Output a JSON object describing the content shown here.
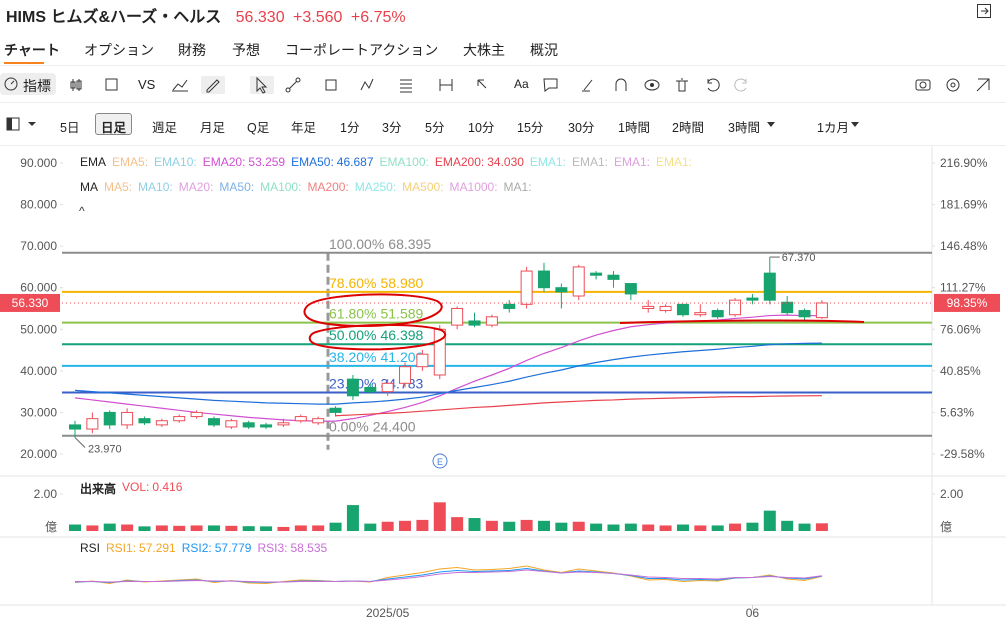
{
  "header": {
    "symbol": "HIMS ヒムズ&ハーズ・ヘルス",
    "price": "56.330",
    "change": "+3.560",
    "change_pct": "+6.75%"
  },
  "tabs": [
    "チャート",
    "オプション",
    "財務",
    "予想",
    "コーポレートアクション",
    "大株主",
    "概況"
  ],
  "toolbar": {
    "indicators": "指標",
    "vs": "VS",
    "text": "Aa"
  },
  "periods": [
    "5日",
    "日足",
    "週足",
    "月足",
    "Q足",
    "年足",
    "1分",
    "3分",
    "5分",
    "10分",
    "15分",
    "30分",
    "1時間",
    "2時間",
    "3時間",
    "1カ月"
  ],
  "earnings_marker": "E",
  "chart_data": {
    "type": "candlestick",
    "categories": [
      null,
      null,
      null,
      null,
      null,
      null,
      null,
      null,
      null,
      null,
      null,
      null,
      null,
      null,
      null,
      null,
      null,
      null,
      "2025/05",
      null,
      null,
      null,
      null,
      null,
      null,
      null,
      null,
      null,
      null,
      null,
      null,
      null,
      null,
      null,
      null,
      null,
      null,
      null,
      null,
      "06",
      null,
      null,
      null,
      null
    ],
    "open": [
      27,
      26,
      30,
      27,
      28.5,
      27,
      28,
      29,
      28.5,
      26.5,
      27.5,
      27,
      27,
      28,
      27.5,
      31,
      38,
      36,
      35,
      37,
      41,
      39,
      51,
      52,
      51,
      56,
      56,
      64,
      60,
      58,
      63.5,
      63,
      61,
      55,
      54.5,
      56,
      53.5,
      54.5,
      53.5,
      57.5,
      63.5,
      56.5,
      54.5,
      52.8
    ],
    "high": [
      28,
      30,
      30.5,
      31,
      29,
      28.5,
      29.5,
      30.5,
      29,
      28.5,
      28,
      27.5,
      28.5,
      29.5,
      29,
      31.5,
      39,
      37,
      38,
      42,
      45,
      51,
      55.5,
      54,
      53.5,
      57,
      65,
      66,
      61,
      65.5,
      64,
      64,
      61,
      57,
      56,
      56,
      56,
      55,
      57.5,
      58.5,
      67.37,
      58,
      55,
      57
    ],
    "low": [
      23.97,
      25,
      26,
      26,
      27,
      26.5,
      27.5,
      28.5,
      26.5,
      26,
      26,
      26,
      26.5,
      27.5,
      27,
      29,
      33,
      34.5,
      34,
      36,
      40,
      38,
      50,
      50.5,
      50.5,
      54,
      55,
      59,
      55,
      57,
      62,
      60,
      57,
      54,
      54,
      53,
      53,
      52.5,
      53,
      56,
      56,
      53.5,
      52,
      52.5
    ],
    "close": [
      26,
      28.5,
      27,
      30,
      27.5,
      28,
      29,
      30,
      27,
      28,
      26.5,
      26.5,
      27.5,
      29,
      28.5,
      30,
      34,
      35,
      37,
      41,
      44,
      50,
      55,
      51,
      53,
      55,
      64,
      60,
      59,
      65,
      63,
      62,
      58.5,
      55.5,
      55.5,
      53.5,
      54,
      53,
      57,
      57,
      57,
      54,
      53,
      56.33
    ],
    "up_color": "#ee4d57",
    "down_color": "#17a46e",
    "ylim": [
      16.15,
      93.6
    ],
    "yticks": [
      {
        "value": 20,
        "label": "20.000"
      },
      {
        "value": 30,
        "label": "30.000"
      },
      {
        "value": 40,
        "label": "40.000"
      },
      {
        "value": 50,
        "label": "50.000"
      },
      {
        "value": 60,
        "label": "60.000"
      },
      {
        "value": 70,
        "label": "70.000"
      },
      {
        "value": 80,
        "label": "80.000"
      },
      {
        "value": 90,
        "label": "90.000"
      }
    ],
    "y2lim": [
      -43.14,
      229.56
    ],
    "y2ticks": [
      {
        "value": -29.58,
        "label": "-29.58%"
      },
      {
        "value": 5.63,
        "label": "5.63%"
      },
      {
        "value": 40.85,
        "label": "40.85%"
      },
      {
        "value": 76.06,
        "label": "76.06%"
      },
      {
        "value": 111.27,
        "label": "111.27%"
      },
      {
        "value": 146.48,
        "label": "146.48%"
      },
      {
        "value": 181.69,
        "label": "181.69%"
      },
      {
        "value": 216.9,
        "label": "216.90%"
      }
    ],
    "ema_legend": {
      "title": "EMA",
      "items": [
        {
          "name": "EMA5:",
          "color": "#f5c08a"
        },
        {
          "name": "EMA10:",
          "color": "#8fd0e6"
        },
        {
          "name": "EMA20:",
          "color": "#d14fd1",
          "value": 53.259
        },
        {
          "name": "EMA50:",
          "color": "#1e6fd9",
          "value": 46.687
        },
        {
          "name": "EMA100:",
          "color": "#8fdfc6"
        },
        {
          "name": "EMA200:",
          "color": "#e8414b",
          "value": 34.03,
          "value_label": "34.030"
        },
        {
          "name": "EMA1:",
          "color": "#8fe6e6"
        },
        {
          "name": "EMA1:",
          "color": "#b9b9b9"
        },
        {
          "name": "EMA1:",
          "color": "#dfa0df"
        },
        {
          "name": "EMA1:",
          "color": "#f3df8a"
        }
      ]
    },
    "ma_legend": {
      "title": "MA",
      "items": [
        {
          "name": "MA5:",
          "color": "#f5c08a"
        },
        {
          "name": "MA10:",
          "color": "#8fd0e6"
        },
        {
          "name": "MA20:",
          "color": "#dfa0df"
        },
        {
          "name": "MA50:",
          "color": "#7fb2e6"
        },
        {
          "name": "MA100:",
          "color": "#8fdfc6"
        },
        {
          "name": "MA200:",
          "color": "#f08080"
        },
        {
          "name": "MA250:",
          "color": "#8fe6e6"
        },
        {
          "name": "MA500:",
          "color": "#f3cf7a"
        },
        {
          "name": "MA1000:",
          "color": "#dfa0df"
        },
        {
          "name": "MA1:",
          "color": "#aaaaaa"
        }
      ]
    },
    "ema_lines": [
      {
        "color": "#d14fd1",
        "values": [
          33.5,
          33.0,
          32.5,
          32.0,
          31.5,
          31.0,
          30.5,
          30.0,
          29.6,
          29.2,
          28.8,
          28.5,
          28.2,
          28.0,
          27.9,
          27.9,
          28.5,
          29.3,
          30.2,
          31.2,
          32.4,
          34.0,
          35.8,
          37.5,
          39.0,
          40.6,
          42.5,
          44.2,
          45.6,
          47.2,
          48.6,
          49.7,
          50.6,
          51.1,
          51.5,
          51.8,
          52.0,
          52.2,
          52.6,
          52.9,
          53.3,
          53.4,
          53.3,
          53.259
        ]
      },
      {
        "color": "#1e6fd9",
        "values": [
          35.3,
          35.0,
          34.7,
          34.4,
          34.1,
          33.8,
          33.5,
          33.2,
          32.9,
          32.7,
          32.5,
          32.3,
          32.2,
          32.1,
          32.0,
          32.0,
          32.3,
          32.5,
          32.8,
          33.2,
          33.7,
          34.5,
          35.3,
          36.0,
          36.7,
          37.5,
          38.5,
          39.4,
          40.2,
          41.2,
          42.0,
          42.7,
          43.3,
          43.8,
          44.2,
          44.6,
          44.9,
          45.2,
          45.6,
          45.9,
          46.3,
          46.5,
          46.6,
          46.687
        ]
      },
      {
        "color": "#e8414b",
        "values": [
          null,
          null,
          null,
          null,
          null,
          null,
          null,
          null,
          null,
          null,
          null,
          null,
          null,
          null,
          null,
          29.2,
          29.4,
          29.6,
          29.8,
          30.0,
          30.3,
          30.6,
          30.9,
          31.2,
          31.4,
          31.7,
          32.0,
          32.3,
          32.5,
          32.7,
          32.9,
          33.0,
          33.2,
          33.3,
          33.4,
          33.5,
          33.6,
          33.7,
          33.8,
          33.8,
          33.9,
          33.95,
          34.0,
          34.03
        ]
      }
    ],
    "fib_levels": [
      {
        "ratio": "100.00%",
        "value": 68.395,
        "value_label": "68.395",
        "color": "#8c8c8c"
      },
      {
        "ratio": "78.60%",
        "value": 58.98,
        "value_label": "58.980",
        "color": "#f4b400"
      },
      {
        "ratio": "61.80%",
        "value": 51.589,
        "value_label": "51.589",
        "color": "#8bc34a"
      },
      {
        "ratio": "50.00%",
        "value": 46.398,
        "value_label": "46.398",
        "color": "#14a07a"
      },
      {
        "ratio": "38.20%",
        "value": 41.206,
        "value_label": "41.206",
        "color": "#26b5ea"
      },
      {
        "ratio": "23.60%",
        "value": 34.783,
        "value_label": "34.783",
        "color": "#3a5fc8"
      },
      {
        "ratio": "0.00%",
        "value": 24.4,
        "value_label": "24.400",
        "color": "#8c8c8c"
      }
    ],
    "last_price": {
      "value": 56.33,
      "label": "56.330"
    },
    "last_pct": {
      "value": 98.35,
      "label": "98.35%"
    },
    "low_marker": {
      "value": 23.97,
      "label": "23.970"
    },
    "high_marker": {
      "value": 67.37,
      "label": "67.370"
    },
    "volume": {
      "title": "出来高",
      "vol_label": "VOL:",
      "unit": "億",
      "ylim": [
        0,
        2.2
      ],
      "yticks": [
        {
          "value": 2,
          "label": "2.00"
        }
      ],
      "values": [
        0.35,
        0.3,
        0.4,
        0.35,
        0.25,
        0.3,
        0.28,
        0.3,
        0.3,
        0.28,
        0.26,
        0.25,
        0.22,
        0.3,
        0.3,
        0.45,
        1.4,
        0.4,
        0.5,
        0.55,
        0.6,
        1.55,
        0.75,
        0.7,
        0.55,
        0.5,
        0.6,
        0.55,
        0.45,
        0.5,
        0.4,
        0.35,
        0.4,
        0.35,
        0.3,
        0.35,
        0.3,
        0.3,
        0.4,
        0.45,
        1.1,
        0.55,
        0.4,
        0.416
      ]
    },
    "rsi": {
      "title": "RSI",
      "ylim": [
        0,
        100
      ],
      "series": [
        {
          "name": "RSI1:",
          "color": "#f5a623",
          "values": [
            45,
            48,
            43,
            50,
            46,
            48,
            50,
            52,
            45,
            49,
            44,
            43,
            47,
            50,
            49,
            47,
            48,
            46,
            55,
            60,
            65,
            72,
            75,
            70,
            71,
            73,
            78,
            70,
            65,
            72,
            68,
            64,
            58,
            50,
            51,
            47,
            49,
            48,
            54,
            55,
            60,
            52,
            49,
            57.291
          ]
        },
        {
          "name": "RSI2:",
          "color": "#2196f3",
          "values": [
            46,
            47,
            45,
            48,
            47,
            47,
            49,
            50,
            47,
            48,
            46,
            45,
            46,
            48,
            48,
            47,
            48,
            47,
            52,
            56,
            60,
            66,
            69,
            67,
            68,
            69,
            73,
            68,
            64,
            68,
            66,
            63,
            59,
            53,
            53,
            50,
            51,
            50,
            54,
            55,
            58,
            54,
            52,
            57.779
          ]
        },
        {
          "name": "RSI3:",
          "color": "#c76fd6",
          "values": [
            47,
            47,
            46,
            47,
            47,
            47,
            48,
            49,
            48,
            48,
            47,
            46,
            46,
            47,
            47,
            47,
            48,
            47,
            50,
            53,
            57,
            62,
            65,
            65,
            66,
            67,
            70,
            67,
            64,
            66,
            65,
            63,
            60,
            56,
            55,
            53,
            53,
            52,
            55,
            55,
            57,
            55,
            54,
            58.535
          ]
        }
      ]
    }
  }
}
